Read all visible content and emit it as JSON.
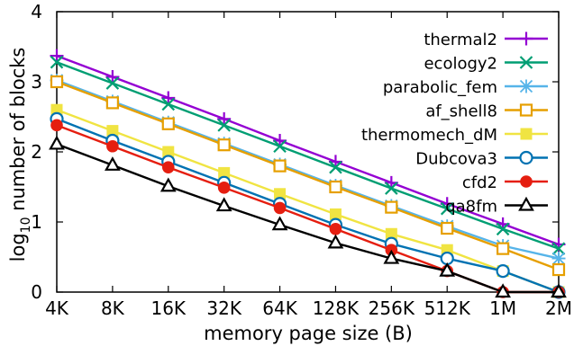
{
  "chart_data": {
    "type": "line",
    "title": "",
    "xlabel": "memory page size (B)",
    "ylabel": {
      "main": "log",
      "sub": "10",
      "rest": " number of blocks"
    },
    "categories": [
      "4K",
      "8K",
      "16K",
      "32K",
      "64K",
      "128K",
      "256K",
      "512K",
      "1M",
      "2M"
    ],
    "ylim": [
      0,
      4
    ],
    "yticks": [
      "0",
      "1",
      "2",
      "3",
      "4"
    ],
    "grid": false,
    "legend_position": "top-right",
    "series": [
      {
        "name": "thermal2",
        "color": "#9400d3",
        "marker": "plus",
        "values": [
          3.37,
          3.07,
          2.77,
          2.47,
          2.16,
          1.86,
          1.56,
          1.26,
          0.97,
          0.68
        ]
      },
      {
        "name": "ecology2",
        "color": "#009e73",
        "marker": "x",
        "values": [
          3.28,
          2.98,
          2.68,
          2.38,
          2.08,
          1.78,
          1.48,
          1.19,
          0.9,
          0.62
        ]
      },
      {
        "name": "parabolic_fem",
        "color": "#56b4e9",
        "marker": "asterisk",
        "values": [
          3.02,
          2.72,
          2.42,
          2.12,
          1.82,
          1.52,
          1.23,
          0.94,
          0.66,
          0.48
        ]
      },
      {
        "name": "af_shell8",
        "color": "#e69f00",
        "marker": "square-open",
        "values": [
          3.0,
          2.7,
          2.4,
          2.1,
          1.8,
          1.5,
          1.21,
          0.91,
          0.62,
          0.32
        ]
      },
      {
        "name": "thermomech_dM",
        "color": "#f0e442",
        "marker": "square-filled",
        "values": [
          2.6,
          2.3,
          2.0,
          1.7,
          1.4,
          1.11,
          0.83,
          0.6,
          0.3,
          0.0
        ]
      },
      {
        "name": "Dubcova3",
        "color": "#0072b2",
        "marker": "circle-open",
        "values": [
          2.47,
          2.16,
          1.86,
          1.56,
          1.26,
          0.96,
          0.69,
          0.48,
          0.3,
          0.0
        ]
      },
      {
        "name": "cfd2",
        "color": "#e51e10",
        "marker": "circle-filled",
        "values": [
          2.38,
          2.08,
          1.78,
          1.49,
          1.2,
          0.9,
          0.6,
          0.3,
          0.0,
          0.0
        ]
      },
      {
        "name": "qa8fm",
        "color": "#000000",
        "marker": "triangle-open",
        "values": [
          2.11,
          1.81,
          1.51,
          1.23,
          0.96,
          0.7,
          0.48,
          0.3,
          0.0,
          0.0
        ]
      }
    ]
  }
}
